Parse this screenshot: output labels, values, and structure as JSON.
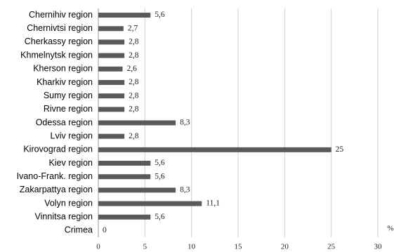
{
  "chart_data": {
    "type": "hbar",
    "categories": [
      "Chernihiv region",
      "Chernivtsi region",
      "Cherkassy region",
      "Khmelnytsk region",
      "Kherson region",
      "Kharkiv region",
      "Sumy region",
      "Rivne region",
      "Odessa region",
      "Lviv region",
      "Kirovograd region",
      "Kiev region",
      "Ivano-Frank. region",
      "Zakarpattya region",
      "Volyn region",
      "Vinnitsa region",
      "Crimea"
    ],
    "values": [
      5.6,
      2.7,
      2.8,
      2.8,
      2.6,
      2.8,
      2.8,
      2.8,
      8.3,
      2.8,
      25,
      5.6,
      5.6,
      8.3,
      11.1,
      5.6,
      0
    ],
    "value_labels": [
      "5,6",
      "2,7",
      "2,8",
      "2,8",
      "2,6",
      "2,8",
      "2,8",
      "2,8",
      "8,3",
      "2,8",
      "25",
      "5,6",
      "5,6",
      "8,3",
      "11,1",
      "5,6",
      "0"
    ],
    "color": "#5a5a5a",
    "xlim": [
      0,
      30
    ],
    "xticks": [
      0,
      5,
      10,
      15,
      20,
      25,
      30
    ],
    "x_unit": "%",
    "grid": true
  }
}
